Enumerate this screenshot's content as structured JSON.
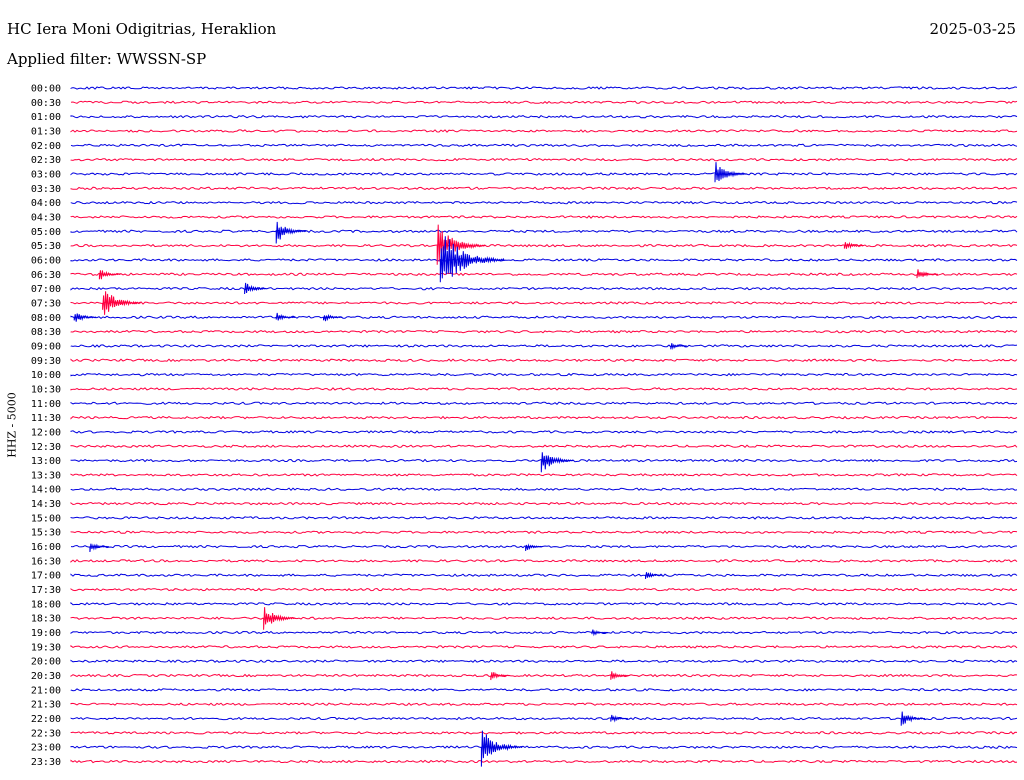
{
  "header": {
    "station": "HC Iera Moni Odigitrias, Heraklion",
    "date": "2025-03-25",
    "filter": "Applied filter: WWSSN-SP"
  },
  "colors": {
    "even_trace": "#0000e0",
    "odd_trace": "#ff0040"
  },
  "chart_data": {
    "type": "line",
    "title": "HC Iera Moni Odigitrias, Heraklion",
    "subtitle": "Applied filter: WWSSN-SP",
    "xlabel": "",
    "ylabel": "HHZ - 5000",
    "row_labels": [
      "00:00",
      "00:30",
      "01:00",
      "01:30",
      "02:00",
      "02:30",
      "03:00",
      "03:30",
      "04:00",
      "04:30",
      "05:00",
      "05:30",
      "06:00",
      "06:30",
      "07:00",
      "07:30",
      "08:00",
      "08:30",
      "09:00",
      "09:30",
      "10:00",
      "10:30",
      "11:00",
      "11:30",
      "12:00",
      "12:30",
      "13:00",
      "13:30",
      "14:00",
      "14:30",
      "15:00",
      "15:30",
      "16:00",
      "16:30",
      "17:00",
      "17:30",
      "18:00",
      "18:30",
      "19:00",
      "19:30",
      "20:00",
      "20:30",
      "21:00",
      "21:30",
      "22:00",
      "22:30",
      "23:00",
      "23:30"
    ],
    "row_minutes": 30,
    "series_colors": [
      "#0000e0",
      "#ff0040"
    ],
    "events": [
      {
        "row": "03:00",
        "minute": 20.4,
        "amplitude": 14
      },
      {
        "row": "05:00",
        "minute": 6.5,
        "amplitude": 13
      },
      {
        "row": "05:30",
        "minute": 11.6,
        "amplitude": 24
      },
      {
        "row": "05:30",
        "minute": 24.5,
        "amplitude": 6
      },
      {
        "row": "06:00",
        "minute": 11.7,
        "amplitude": 34
      },
      {
        "row": "06:30",
        "minute": 0.9,
        "amplitude": 7
      },
      {
        "row": "06:30",
        "minute": 26.8,
        "amplitude": 7
      },
      {
        "row": "07:00",
        "minute": 5.5,
        "amplitude": 8
      },
      {
        "row": "07:30",
        "minute": 1.0,
        "amplitude": 18
      },
      {
        "row": "08:00",
        "minute": 0.1,
        "amplitude": 8
      },
      {
        "row": "08:00",
        "minute": 6.5,
        "amplitude": 6
      },
      {
        "row": "08:00",
        "minute": 8.0,
        "amplitude": 6
      },
      {
        "row": "09:00",
        "minute": 19.0,
        "amplitude": 4
      },
      {
        "row": "13:00",
        "minute": 14.9,
        "amplitude": 14
      },
      {
        "row": "16:00",
        "minute": 0.6,
        "amplitude": 6
      },
      {
        "row": "16:00",
        "minute": 14.4,
        "amplitude": 5
      },
      {
        "row": "17:00",
        "minute": 18.2,
        "amplitude": 5
      },
      {
        "row": "18:30",
        "minute": 6.1,
        "amplitude": 14
      },
      {
        "row": "19:00",
        "minute": 16.5,
        "amplitude": 4
      },
      {
        "row": "20:30",
        "minute": 13.3,
        "amplitude": 6
      },
      {
        "row": "20:30",
        "minute": 17.1,
        "amplitude": 6
      },
      {
        "row": "22:00",
        "minute": 17.1,
        "amplitude": 5
      },
      {
        "row": "22:00",
        "minute": 26.3,
        "amplitude": 9
      },
      {
        "row": "23:00",
        "minute": 13.0,
        "amplitude": 20
      }
    ]
  }
}
